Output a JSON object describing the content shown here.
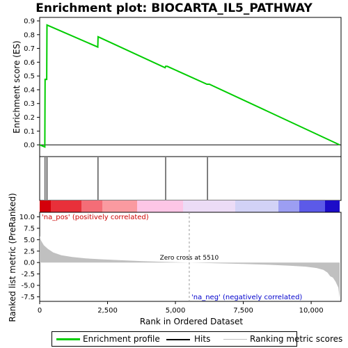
{
  "chart_data": {
    "type": "line",
    "title": "Enrichment plot: BIOCARTA_IL5_PATHWAY",
    "xlabel": "Rank in Ordered Dataset",
    "es_panel": {
      "ylabel": "Enrichment score (ES)",
      "ylim": [
        -0.05,
        0.9
      ],
      "yticks": [
        "0.0",
        "0.1",
        "0.2",
        "0.3",
        "0.4",
        "0.5",
        "0.6",
        "0.7",
        "0.8",
        "0.9"
      ],
      "series": [
        {
          "name": "Enrichment profile",
          "color": "#00cc00",
          "x": [
            0,
            190,
            200,
            205,
            260,
            270,
            2140,
            2150,
            4620,
            4640,
            4700,
            6160,
            6180,
            6250,
            11050
          ],
          "y": [
            0.0,
            -0.015,
            0.48,
            0.475,
            0.475,
            0.87,
            0.71,
            0.785,
            0.56,
            0.57,
            0.57,
            0.44,
            0.44,
            0.44,
            0.0
          ]
        }
      ]
    },
    "hits": [
      200,
      270,
      2150,
      4640,
      6180
    ],
    "colorbar": [
      "#d4000a",
      "#e8303a",
      "#f46d77",
      "#fa9aa0",
      "#fdc6e6",
      "#ecdcf6",
      "#d2d2f6",
      "#9c9ef2",
      "#5c5ae8",
      "#1c0cc8"
    ],
    "ranked_panel": {
      "ylabel": "Ranked list metric (PreRanked)",
      "ylim": [
        -8.5,
        11
      ],
      "yticks": [
        "10.0",
        "7.5",
        "5.0",
        "2.5",
        "0.0",
        "-2.5",
        "-5.0",
        "-7.5"
      ],
      "metric_x": [
        0,
        50,
        150,
        300,
        500,
        800,
        1200,
        1700,
        2300,
        3000,
        3800,
        4600,
        5510,
        6500,
        7500,
        8500,
        9200,
        9800,
        10200,
        10450,
        10600,
        10700,
        10800,
        10900,
        11000,
        11050
      ],
      "metric_y": [
        5.8,
        4.8,
        3.8,
        3.0,
        2.2,
        1.6,
        1.2,
        0.9,
        0.7,
        0.5,
        0.3,
        0.15,
        0.0,
        -0.15,
        -0.3,
        -0.5,
        -0.7,
        -0.9,
        -1.2,
        -1.6,
        -2.2,
        -3.0,
        -3.3,
        -4.2,
        -5.5,
        -7.8
      ],
      "zero_cross_label": "Zero cross at 5510",
      "zero_cross_x": 5510,
      "pos_label": "'na_pos' (positively correlated)",
      "neg_label": "'na_neg' (negatively correlated)"
    },
    "xlim": [
      0,
      11100
    ],
    "xticks": [
      0,
      2500,
      5000,
      7500,
      10000
    ],
    "xtick_labels": [
      "0",
      "2,500",
      "5,000",
      "7,500",
      "10,000"
    ],
    "legend": [
      {
        "label": "Enrichment profile",
        "color": "#00cc00"
      },
      {
        "label": "Hits",
        "color": "#000000"
      },
      {
        "label": "Ranking metric scores",
        "color": "#c0c0c0"
      }
    ]
  }
}
